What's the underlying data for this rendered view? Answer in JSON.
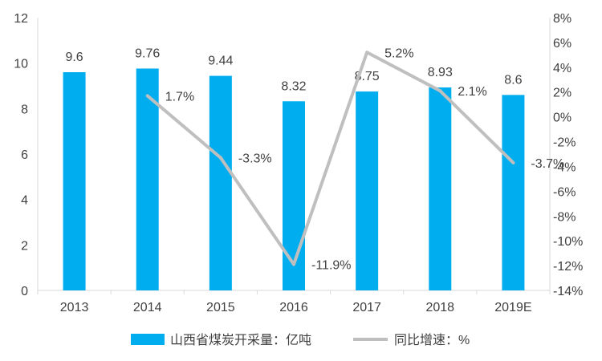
{
  "chart_data": {
    "type": "bar",
    "categories": [
      "2013",
      "2014",
      "2015",
      "2016",
      "2017",
      "2018",
      "2019E"
    ],
    "series": [
      {
        "name": "山西省煤炭开采量：亿吨",
        "type": "bar",
        "axis": "left",
        "values": [
          9.6,
          9.76,
          9.44,
          8.32,
          8.75,
          8.93,
          8.6
        ],
        "labels": [
          "9.6",
          "9.76",
          "9.44",
          "8.32",
          "8.75",
          "8.93",
          "8.6"
        ]
      },
      {
        "name": "同比增速：%",
        "type": "line",
        "axis": "right",
        "values": [
          null,
          1.7,
          -3.3,
          -11.9,
          5.2,
          2.1,
          -3.7
        ],
        "labels": [
          "",
          "1.7%",
          "-3.3%",
          "-11.9%",
          "5.2%",
          "2.1%",
          "-3.7%"
        ]
      }
    ],
    "y_left": {
      "ylim": [
        0,
        12
      ],
      "ticks": [
        "0",
        "2",
        "4",
        "6",
        "8",
        "10",
        "12"
      ]
    },
    "y_right": {
      "ylim": [
        -14,
        8
      ],
      "ticks": [
        "-14%",
        "-12%",
        "-10%",
        "-8%",
        "-6%",
        "-4%",
        "-2%",
        "0%",
        "2%",
        "4%",
        "6%",
        "8%"
      ]
    },
    "grid": false,
    "legend_position": "bottom",
    "colors": {
      "bar": "#00AEEF",
      "line": "#BFBFBF",
      "axis": "#D9D9D9",
      "text": "#404040"
    }
  }
}
